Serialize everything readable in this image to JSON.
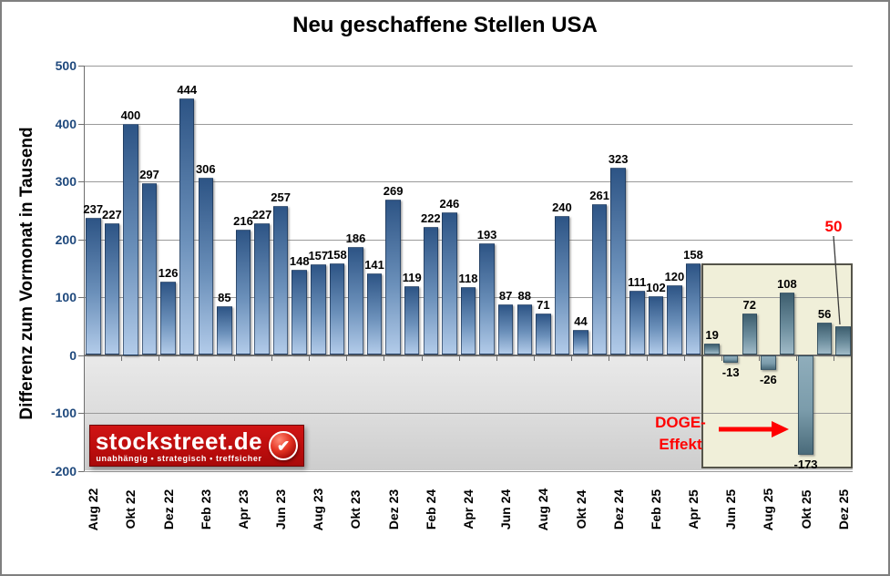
{
  "title": "Neu geschaffene Stellen USA",
  "y_axis_title": "Differenz zum Vormonat in Tausend",
  "chart_data": {
    "type": "bar",
    "title": "Neu geschaffene Stellen USA",
    "ylabel": "Differenz zum Vormonat in Tausend",
    "ylim": [
      -200,
      500
    ],
    "grid": true,
    "y_ticks": [
      500,
      400,
      300,
      200,
      100,
      0,
      -100,
      -200
    ],
    "x_tick_labels": [
      "Aug 22",
      "Okt 22",
      "Dez 22",
      "Feb 23",
      "Apr 23",
      "Jun 23",
      "Aug 23",
      "Okt 23",
      "Dez 23",
      "Feb 24",
      "Apr 24",
      "Jun 24",
      "Aug 24",
      "Okt 24",
      "Dez 24",
      "Feb 25",
      "Apr 25",
      "Jun 25",
      "Aug 25",
      "Okt 25",
      "Dez 25"
    ],
    "x_tick_every": 2,
    "values": [
      237,
      227,
      400,
      297,
      126,
      444,
      306,
      85,
      216,
      227,
      257,
      148,
      157,
      158,
      186,
      141,
      269,
      119,
      222,
      246,
      118,
      193,
      87,
      88,
      71,
      240,
      44,
      261,
      323,
      111,
      102,
      120,
      158,
      19,
      -13,
      72,
      -26,
      108,
      -173,
      56,
      50
    ],
    "highlight_box": {
      "start_index": 33,
      "count": 8
    }
  },
  "annotations": {
    "doge_label_line1": "DOGE-",
    "doge_label_line2": "Effekt",
    "forecast_value_label": "50",
    "forecast_index": 40
  },
  "logo": {
    "text": "stockstreet.de",
    "tagline": "unabhängig • strategisch • treffsicher",
    "checkmark": "✔"
  },
  "colors": {
    "bar_top": "#2d5485",
    "bar_bottom": "#b2cbe9",
    "box_bar_top": "#3d5e6e",
    "box_bar_bottom": "#a0bac7",
    "box_neg_top": "#8fadbb",
    "box_neg_bottom": "#4a6b7b",
    "highlight_bg": "#f0efd9",
    "red": "#ff0000",
    "logo_red": "#bb0d0d",
    "navy": "#1f497d"
  }
}
